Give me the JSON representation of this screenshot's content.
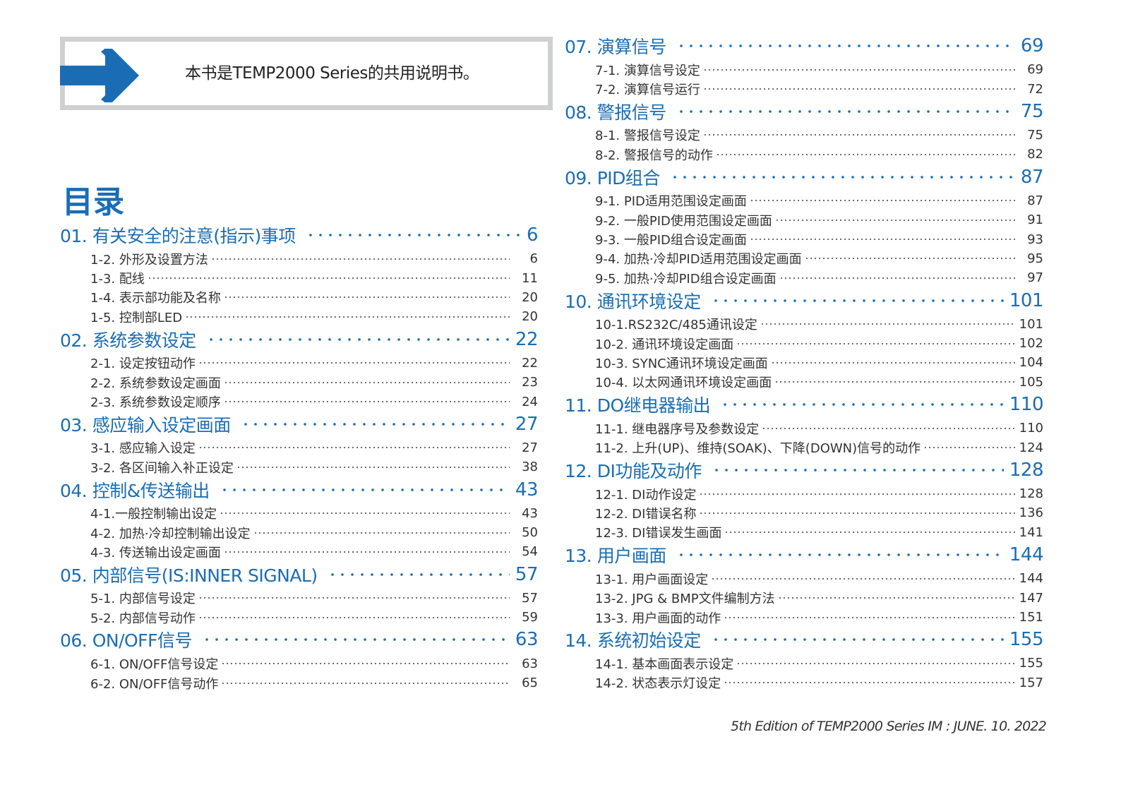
{
  "notice": {
    "text": "本书是TEMP2000 Series的共用说明书。",
    "icon": "arrow-right-icon"
  },
  "toc_title": "目录",
  "colors": {
    "accent": "#1a6db5",
    "frame": "#cfd0d2"
  },
  "left_sections": [
    {
      "title": "01. 有关安全的注意(指示)事项",
      "page": "6",
      "items": [
        {
          "label": "1-2. 外形及设置方法",
          "page": "6"
        },
        {
          "label": "1-3. 配线",
          "page": "11"
        },
        {
          "label": "1-4. 表示部功能及名称",
          "page": "20"
        },
        {
          "label": "1-5. 控制部LED",
          "page": "20"
        }
      ]
    },
    {
      "title": "02. 系统参数设定",
      "page": "22",
      "items": [
        {
          "label": "2-1. 设定按钮动作",
          "page": "22"
        },
        {
          "label": "2-2. 系统参数设定画面",
          "page": "23"
        },
        {
          "label": "2-3. 系统参数设定顺序",
          "page": "24"
        }
      ]
    },
    {
      "title": "03. 感应输入设定画面",
      "page": "27",
      "items": [
        {
          "label": "3-1. 感应输入设定",
          "page": "27"
        },
        {
          "label": "3-2. 各区间输入补正设定",
          "page": "38"
        }
      ]
    },
    {
      "title": "04. 控制&传送输出",
      "page": "43",
      "items": [
        {
          "label": "4-1.一般控制输出设定",
          "page": "43"
        },
        {
          "label": "4-2. 加热·冷却控制输出设定",
          "page": "50"
        },
        {
          "label": "4-3. 传送输出设定画面",
          "page": "54"
        }
      ]
    },
    {
      "title": "05. 内部信号(IS:INNER SIGNAL)",
      "page": "57",
      "items": [
        {
          "label": "5-1. 内部信号设定",
          "page": "57"
        },
        {
          "label": "5-2. 内部信号动作",
          "page": "59"
        }
      ]
    },
    {
      "title": "06. ON/OFF信号",
      "page": "63",
      "items": [
        {
          "label": "6-1. ON/OFF信号设定",
          "page": "63"
        },
        {
          "label": "6-2. ON/OFF信号动作",
          "page": "65"
        }
      ]
    }
  ],
  "right_sections": [
    {
      "title": "07. 演算信号",
      "page": "69",
      "items": [
        {
          "label": "7-1. 演算信号设定",
          "page": "69"
        },
        {
          "label": "7-2. 演算信号运行",
          "page": "72"
        }
      ]
    },
    {
      "title": "08. 警报信号",
      "page": "75",
      "items": [
        {
          "label": "8-1. 警报信号设定",
          "page": "75"
        },
        {
          "label": "8-2. 警报信号的动作",
          "page": "82"
        }
      ]
    },
    {
      "title": "09. PID组合",
      "page": "87",
      "items": [
        {
          "label": "9-1. PID适用范围设定画面",
          "page": "87"
        },
        {
          "label": "9-2. 一般PID使用范围设定画面",
          "page": "91"
        },
        {
          "label": "9-3. 一般PID组合设定画面",
          "page": "93"
        },
        {
          "label": "9-4. 加热·冷却PID适用范围设定画面",
          "page": "95"
        },
        {
          "label": "9-5. 加热·冷却PID组合设定画面",
          "page": "97"
        }
      ]
    },
    {
      "title": "10. 通讯环境设定",
      "page": "101",
      "items": [
        {
          "label": "10-1.RS232C/485通讯设定",
          "page": "101"
        },
        {
          "label": "10-2. 通讯环境设定画面",
          "page": "102"
        },
        {
          "label": "10-3. SYNC通讯环境设定画面",
          "page": "104"
        },
        {
          "label": "10-4. 以太网通讯环境设定画面",
          "page": "105"
        }
      ]
    },
    {
      "title": "11. DO继电器输出",
      "page": "110",
      "items": [
        {
          "label": "11-1. 继电器序号及参数设定",
          "page": "110"
        },
        {
          "label": "11-2. 上升(UP)、维持(SOAK)、下降(DOWN)信号的动作",
          "page": "124"
        }
      ]
    },
    {
      "title": "12. DI功能及动作",
      "page": "128",
      "items": [
        {
          "label": "12-1. DI动作设定",
          "page": "128"
        },
        {
          "label": "12-2. DI错误名称",
          "page": "136"
        },
        {
          "label": "12-3. DI错误发生画面",
          "page": "141"
        }
      ]
    },
    {
      "title": "13. 用户画面",
      "page": "144",
      "items": [
        {
          "label": "13-1. 用户画面设定",
          "page": "144"
        },
        {
          "label": "13-2. JPG & BMP文件编制方法",
          "page": "147"
        },
        {
          "label": "13-3. 用户画面的动作",
          "page": "151"
        }
      ]
    },
    {
      "title": "14. 系统初始设定",
      "page": "155",
      "items": [
        {
          "label": "14-1. 基本画面表示设定",
          "page": "155"
        },
        {
          "label": "14-2. 状态表示灯设定",
          "page": "157"
        }
      ]
    }
  ],
  "footer": "5th Edition of TEMP2000 Series IM : JUNE. 10. 2022"
}
